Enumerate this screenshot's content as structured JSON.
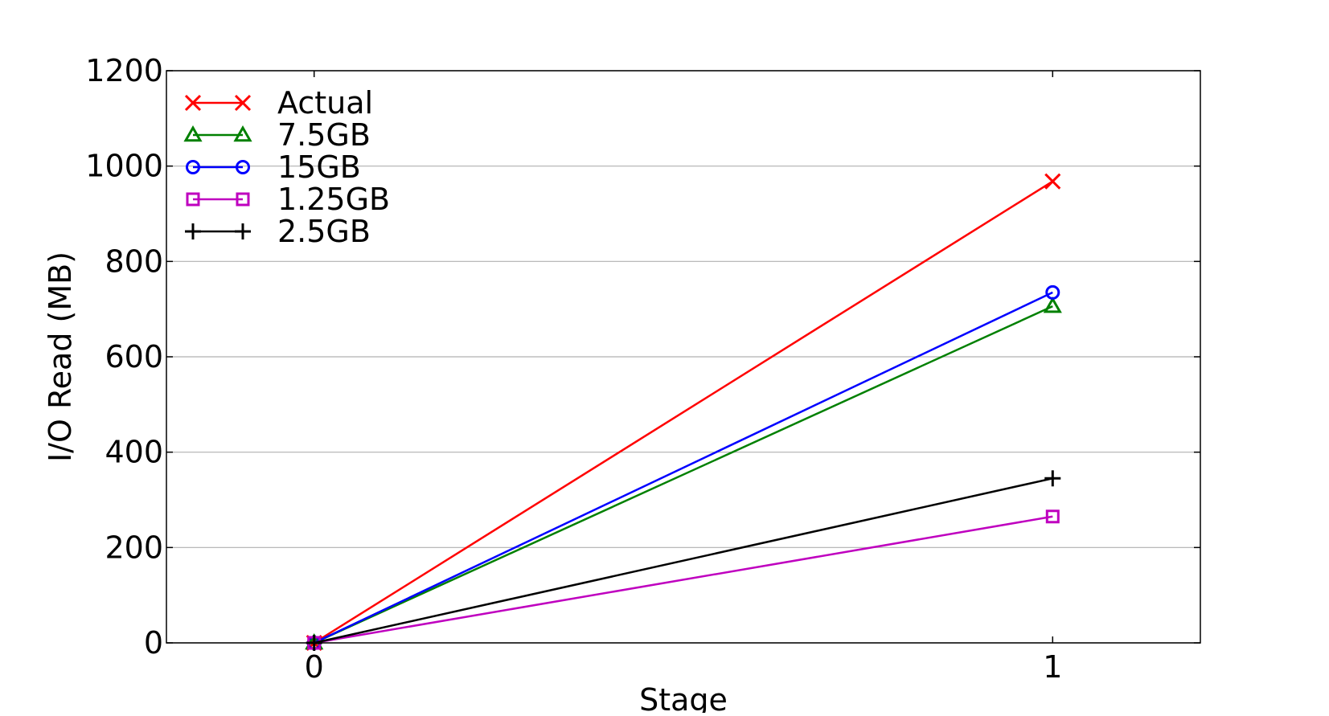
{
  "chart_data": {
    "type": "line",
    "title": "",
    "xlabel": "Stage",
    "ylabel": "I/O Read (MB)",
    "x": [
      0,
      1
    ],
    "xlim": [
      -0.2,
      1.2
    ],
    "ylim": [
      0,
      1200
    ],
    "xticks": [
      "0",
      "1"
    ],
    "yticks": [
      "0",
      "200",
      "400",
      "600",
      "800",
      "1000",
      "1200"
    ],
    "grid": "horizontal",
    "legend_position": "top-left",
    "series": [
      {
        "name": "Actual",
        "values": [
          0,
          968
        ],
        "color": "#ff0000",
        "marker": "x"
      },
      {
        "name": "7.5GB",
        "values": [
          0,
          706
        ],
        "color": "#008000",
        "marker": "triangle"
      },
      {
        "name": "15GB",
        "values": [
          0,
          735
        ],
        "color": "#0000ff",
        "marker": "circle"
      },
      {
        "name": "1.25GB",
        "values": [
          0,
          265
        ],
        "color": "#bf00bf",
        "marker": "square"
      },
      {
        "name": "2.5GB",
        "values": [
          0,
          345
        ],
        "color": "#000000",
        "marker": "plus"
      }
    ]
  }
}
